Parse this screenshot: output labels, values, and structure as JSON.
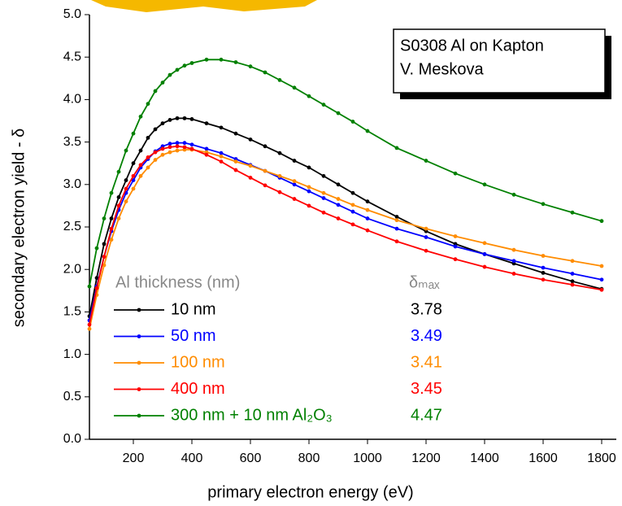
{
  "chart_data": {
    "type": "line",
    "xlabel": "primary electron energy (eV)",
    "ylabel": "secondary electron yield - δ",
    "annotation": [
      "S0308 Al on Kapton",
      "V. Meskova"
    ],
    "legend_title": "Al thickness (nm)",
    "legend_value_title": "δₘₐₓ",
    "xlim": [
      50,
      1850
    ],
    "ylim": [
      0,
      5
    ],
    "xticks": [
      200,
      400,
      600,
      800,
      1000,
      1200,
      1400,
      1600,
      1800
    ],
    "yticks": [
      {
        "value": 0,
        "label": "0.0"
      },
      0.5,
      {
        "value": 1,
        "label": "1.0"
      },
      1.5,
      {
        "value": 2,
        "label": "2.0"
      },
      2.5,
      {
        "value": 3,
        "label": "3.0"
      },
      3.5,
      {
        "value": 4,
        "label": "4.0"
      },
      4.5,
      {
        "value": 5,
        "label": "5.0"
      }
    ],
    "x": [
      50,
      75,
      100,
      125,
      150,
      175,
      200,
      225,
      250,
      275,
      300,
      325,
      350,
      375,
      400,
      450,
      500,
      550,
      600,
      650,
      700,
      750,
      800,
      850,
      900,
      950,
      1000,
      1100,
      1200,
      1300,
      1400,
      1500,
      1600,
      1700,
      1800
    ],
    "series": [
      {
        "name": "10 nm",
        "color": "#000000",
        "delta_max": 3.78,
        "values": [
          1.45,
          1.9,
          2.3,
          2.6,
          2.85,
          3.05,
          3.25,
          3.4,
          3.55,
          3.65,
          3.72,
          3.76,
          3.78,
          3.78,
          3.77,
          3.72,
          3.67,
          3.6,
          3.53,
          3.45,
          3.37,
          3.28,
          3.2,
          3.1,
          3.0,
          2.9,
          2.8,
          2.62,
          2.45,
          2.3,
          2.18,
          2.07,
          1.96,
          1.86,
          1.77
        ]
      },
      {
        "name": "50 nm",
        "color": "#0000ff",
        "delta_max": 3.49,
        "values": [
          1.4,
          1.8,
          2.15,
          2.45,
          2.7,
          2.9,
          3.05,
          3.2,
          3.3,
          3.39,
          3.45,
          3.48,
          3.49,
          3.49,
          3.47,
          3.42,
          3.37,
          3.3,
          3.23,
          3.16,
          3.08,
          3.0,
          2.92,
          2.84,
          2.76,
          2.68,
          2.6,
          2.48,
          2.38,
          2.27,
          2.18,
          2.1,
          2.02,
          1.95,
          1.88
        ]
      },
      {
        "name": "100 nm",
        "color": "#ff8c00",
        "delta_max": 3.41,
        "values": [
          1.3,
          1.7,
          2.05,
          2.35,
          2.6,
          2.8,
          2.95,
          3.1,
          3.2,
          3.29,
          3.35,
          3.38,
          3.4,
          3.41,
          3.41,
          3.38,
          3.33,
          3.27,
          3.22,
          3.16,
          3.1,
          3.04,
          2.97,
          2.9,
          2.83,
          2.76,
          2.7,
          2.58,
          2.48,
          2.39,
          2.31,
          2.23,
          2.16,
          2.1,
          2.04
        ]
      },
      {
        "name": "400 nm",
        "color": "#ff0000",
        "delta_max": 3.45,
        "values": [
          1.35,
          1.78,
          2.15,
          2.48,
          2.75,
          2.95,
          3.1,
          3.23,
          3.32,
          3.38,
          3.42,
          3.44,
          3.45,
          3.44,
          3.42,
          3.35,
          3.27,
          3.17,
          3.08,
          2.99,
          2.91,
          2.83,
          2.75,
          2.67,
          2.6,
          2.53,
          2.46,
          2.33,
          2.22,
          2.12,
          2.03,
          1.95,
          1.88,
          1.82,
          1.76
        ]
      },
      {
        "name": "300 nm + 10 nm Al₂O₃",
        "color": "#008000",
        "delta_max": 4.47,
        "values": [
          1.8,
          2.25,
          2.6,
          2.9,
          3.15,
          3.4,
          3.6,
          3.8,
          3.95,
          4.1,
          4.2,
          4.29,
          4.35,
          4.4,
          4.43,
          4.47,
          4.47,
          4.44,
          4.39,
          4.32,
          4.23,
          4.14,
          4.04,
          3.94,
          3.84,
          3.74,
          3.63,
          3.43,
          3.28,
          3.13,
          3.0,
          2.88,
          2.77,
          2.67,
          2.57
        ]
      }
    ]
  }
}
